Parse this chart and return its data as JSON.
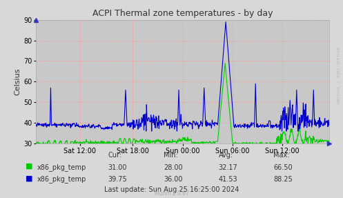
{
  "title": "ACPI Thermal zone temperatures - by day",
  "ylabel": "Celsius",
  "ylim": [
    30,
    90
  ],
  "yticks": [
    30,
    40,
    50,
    60,
    70,
    80,
    90
  ],
  "bg_color": "#d8d8d8",
  "plot_bg_color": "#c8c8c8",
  "grid_color": "#ff9999",
  "line1_color": "#00cc00",
  "line2_color": "#0000cc",
  "xtick_labels": [
    "Sat 12:00",
    "Sat 18:00",
    "Sun 00:00",
    "Sun 06:00",
    "Sun 12:00"
  ],
  "xtick_positions": [
    0.15,
    0.33,
    0.5,
    0.67,
    0.84
  ],
  "legend": [
    {
      "label": "x86_pkg_temp",
      "color": "#00cc00"
    },
    {
      "label": "x86_pkg_temp",
      "color": "#0000cc"
    }
  ],
  "stats_headers": [
    "Cur:",
    "Min:",
    "Avg:",
    "Max:"
  ],
  "stats_green": [
    "31.00",
    "28.00",
    "32.17",
    "66.50"
  ],
  "stats_blue": [
    "39.75",
    "36.00",
    "41.53",
    "88.25"
  ],
  "footer": "Last update: Sun Aug 25 16:25:00 2024",
  "munin_version": "Munin 2.0.67",
  "watermark": "RRDTOOL / TOBI OETIKER"
}
